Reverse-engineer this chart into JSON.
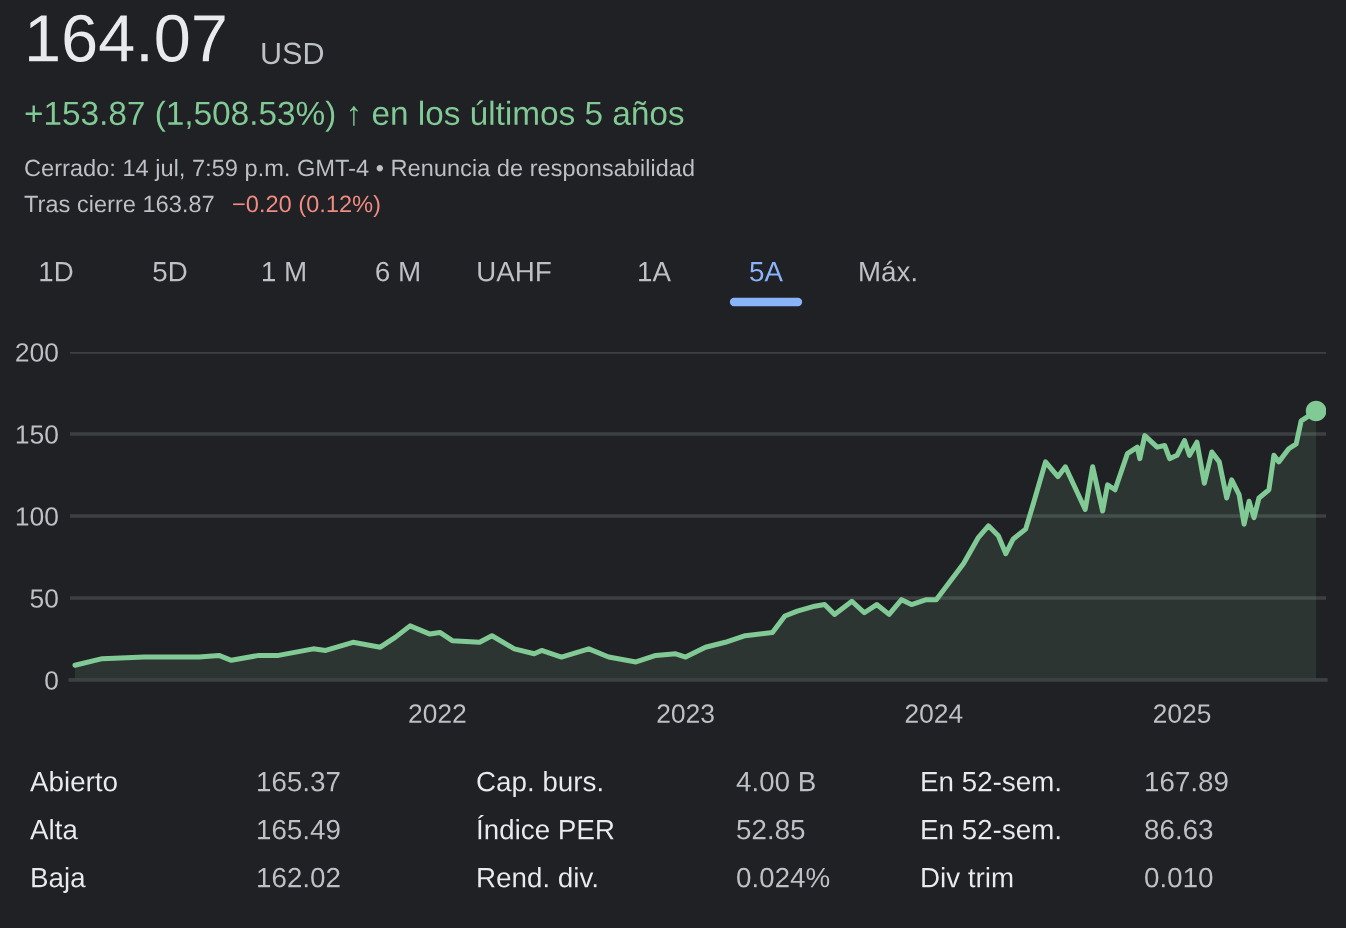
{
  "chart_data": {
    "type": "area",
    "title": "164.07",
    "subtitle": "+153.87 (1,508.53%) ↑ en los últimos 5 años",
    "annotations": [
      "USD",
      "Cerrado: 14 jul, 7:59 p.m. GMT-4 • Renuncia de responsabilidad",
      "Tras cierre 163.87",
      "−0.20 (0.12%)",
      "1D",
      "5D",
      "1 M",
      "6 M",
      "UAHF",
      "1A",
      "5A",
      "Máx.",
      "Abierto",
      "165.37",
      "Cap. burs.",
      "4.00 B",
      "En 52-sem.",
      "167.89",
      "Alta",
      "165.49",
      "Índice PER",
      "52.85",
      "En 52-sem.",
      "86.63",
      "Baja",
      "162.02",
      "Rend. div.",
      "0.024%",
      "Div trim",
      "0.010"
    ],
    "series": [
      {
        "color": "#81c995",
        "x": [
          2020.54,
          2020.65,
          2020.82,
          2021.04,
          2021.12,
          2021.17,
          2021.28,
          2021.36,
          2021.5,
          2021.55,
          2021.66,
          2021.77,
          2021.83,
          2021.89,
          2021.97,
          2022.01,
          2022.06,
          2022.17,
          2022.22,
          2022.31,
          2022.39,
          2022.42,
          2022.5,
          2022.61,
          2022.69,
          2022.8,
          2022.88,
          2022.96,
          2023.0,
          2023.08,
          2023.16,
          2023.24,
          2023.35,
          2023.4,
          2023.45,
          2023.52,
          2023.56,
          2023.6,
          2023.67,
          2023.72,
          2023.77,
          2023.82,
          2023.87,
          2023.91,
          2023.97,
          2024.01,
          2024.06,
          2024.12,
          2024.18,
          2024.22,
          2024.26,
          2024.29,
          2024.32,
          2024.37,
          2024.4,
          2024.45,
          2024.5,
          2024.53,
          2024.61,
          2024.64,
          2024.68,
          2024.7,
          2024.73,
          2024.78,
          2024.82,
          2024.83,
          2024.85,
          2024.9,
          2024.93,
          2024.95,
          2024.98,
          2025.01,
          2025.03,
          2025.06,
          2025.09,
          2025.12,
          2025.15,
          2025.18,
          2025.2,
          2025.23,
          2025.25,
          2025.27,
          2025.29,
          2025.31,
          2025.35,
          2025.37,
          2025.39,
          2025.43,
          2025.46,
          2025.48,
          2025.54
        ],
        "values": [
          9,
          13,
          14,
          14,
          15,
          12,
          15,
          15,
          19,
          18,
          23,
          20,
          26,
          33,
          28,
          29,
          24,
          23,
          27,
          19,
          16,
          18,
          14,
          19,
          14,
          11,
          15,
          16,
          14,
          20,
          23,
          27,
          29,
          39,
          42,
          45,
          46,
          40,
          48,
          41,
          46,
          40,
          49,
          46,
          49,
          49,
          59,
          71,
          87,
          94,
          88,
          77,
          86,
          92,
          107,
          133,
          124,
          130,
          104,
          130,
          103,
          119,
          116,
          138,
          142,
          135,
          149,
          142,
          143,
          135,
          137,
          146,
          137,
          145,
          120,
          139,
          133,
          111,
          122,
          113,
          95,
          109,
          99,
          111,
          116,
          137,
          133,
          141,
          144,
          158,
          164
        ]
      },
      {
        "type": "scatter",
        "color": "#81c995",
        "x": [
          2025.54
        ],
        "values": [
          164
        ]
      }
    ],
    "xlim": [
      2020.52,
      2025.58
    ],
    "xticks": [
      2022,
      2023,
      2024,
      2025
    ],
    "ylim": [
      0,
      200
    ],
    "yticks": [
      0,
      50,
      100,
      150,
      200
    ],
    "grid": "y"
  }
}
